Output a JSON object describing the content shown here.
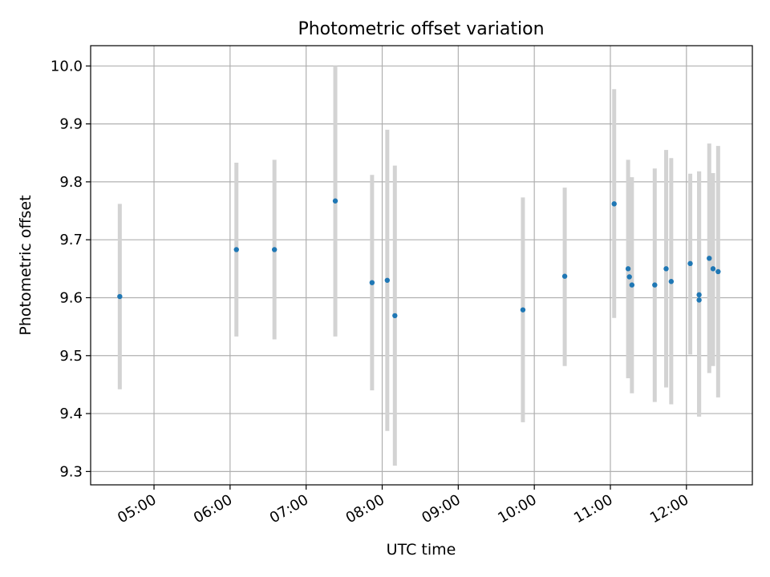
{
  "chart_data": {
    "type": "scatter",
    "title": "Photometric offset variation",
    "xlabel": "UTC time",
    "ylabel": "Photometric offset",
    "x_axis": {
      "kind": "time",
      "range": [
        "04:10",
        "12:52"
      ],
      "ticks": [
        "05:00",
        "06:00",
        "07:00",
        "08:00",
        "09:00",
        "10:00",
        "11:00",
        "12:00"
      ]
    },
    "y_axis": {
      "range": [
        9.277,
        10.035
      ],
      "ticks": [
        "9.3",
        "9.4",
        "9.5",
        "9.6",
        "9.7",
        "9.8",
        "9.9",
        "10.0"
      ]
    },
    "grid": true,
    "colors": {
      "point": "#1f77b4",
      "error_bar": "#d3d3d3",
      "grid": "#b0b0b0"
    },
    "series": [
      {
        "points": [
          {
            "time": "04:33",
            "y": 9.602,
            "low": 9.442,
            "high": 9.762
          },
          {
            "time": "06:05",
            "y": 9.683,
            "low": 9.533,
            "high": 9.833
          },
          {
            "time": "06:35",
            "y": 9.683,
            "low": 9.528,
            "high": 9.838
          },
          {
            "time": "07:23",
            "y": 9.767,
            "low": 9.533,
            "high": 10.0
          },
          {
            "time": "07:52",
            "y": 9.626,
            "low": 9.44,
            "high": 9.812
          },
          {
            "time": "08:04",
            "y": 9.63,
            "low": 9.37,
            "high": 9.89
          },
          {
            "time": "08:10",
            "y": 9.569,
            "low": 9.31,
            "high": 9.828
          },
          {
            "time": "09:51",
            "y": 9.579,
            "low": 9.385,
            "high": 9.773
          },
          {
            "time": "10:24",
            "y": 9.637,
            "low": 9.482,
            "high": 9.79
          },
          {
            "time": "11:03",
            "y": 9.762,
            "low": 9.565,
            "high": 9.96
          },
          {
            "time": "11:14",
            "y": 9.65,
            "low": 9.461,
            "high": 9.838
          },
          {
            "time": "11:15",
            "y": 9.636,
            "low": 9.465,
            "high": 9.808
          },
          {
            "time": "11:17",
            "y": 9.622,
            "low": 9.435,
            "high": 9.808
          },
          {
            "time": "11:35",
            "y": 9.622,
            "low": 9.42,
            "high": 9.823
          },
          {
            "time": "11:44",
            "y": 9.65,
            "low": 9.445,
            "high": 9.855
          },
          {
            "time": "11:48",
            "y": 9.628,
            "low": 9.416,
            "high": 9.841
          },
          {
            "time": "12:03",
            "y": 9.659,
            "low": 9.502,
            "high": 9.814
          },
          {
            "time": "12:10",
            "y": 9.605,
            "low": 9.395,
            "high": 9.818
          },
          {
            "time": "12:10",
            "y": 9.596,
            "low": 9.395,
            "high": 9.818
          },
          {
            "time": "12:18",
            "y": 9.668,
            "low": 9.47,
            "high": 9.866
          },
          {
            "time": "12:21",
            "y": 9.65,
            "low": 9.482,
            "high": 9.815
          },
          {
            "time": "12:25",
            "y": 9.645,
            "low": 9.428,
            "high": 9.862
          }
        ]
      }
    ]
  }
}
